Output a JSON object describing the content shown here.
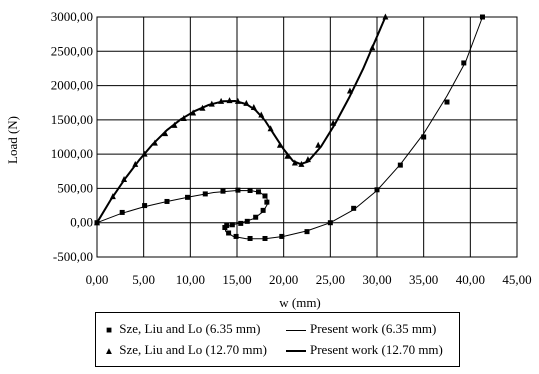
{
  "chart_data": {
    "type": "scatter",
    "xlabel": "w (mm)",
    "ylabel": "Load (N)",
    "xlim": [
      0,
      45
    ],
    "ylim": [
      -500,
      3000
    ],
    "xticks": [
      "0,00",
      "5,00",
      "10,00",
      "15,00",
      "20,00",
      "25,00",
      "30,00",
      "35,00",
      "40,00",
      "45,00"
    ],
    "yticks": [
      "-500,00",
      "0,00",
      "500,00",
      "1000,00",
      "1500,00",
      "2000,00",
      "2500,00",
      "3000,00"
    ],
    "grid": true,
    "legend_position": "bottom",
    "series": [
      {
        "name": "Sze, Liu and Lo (6.35 mm)",
        "kind": "markers",
        "marker": "square",
        "points": [
          [
            0,
            0
          ],
          [
            2.7,
            150
          ],
          [
            5.1,
            250
          ],
          [
            7.5,
            310
          ],
          [
            9.7,
            370
          ],
          [
            11.6,
            420
          ],
          [
            13.5,
            460
          ],
          [
            15.1,
            475
          ],
          [
            16.4,
            470
          ],
          [
            17.3,
            450
          ],
          [
            18,
            390
          ],
          [
            18.2,
            300
          ],
          [
            17.8,
            180
          ],
          [
            17,
            80
          ],
          [
            16.1,
            20
          ],
          [
            15.4,
            -10
          ],
          [
            14.5,
            -30
          ],
          [
            13.9,
            -40
          ],
          [
            13.7,
            -70
          ],
          [
            14.1,
            -150
          ],
          [
            14.9,
            -200
          ],
          [
            16.4,
            -230
          ],
          [
            18,
            -230
          ],
          [
            19.8,
            -200
          ],
          [
            22.5,
            -130
          ],
          [
            25,
            0
          ],
          [
            27.5,
            210
          ],
          [
            30,
            480
          ],
          [
            32.5,
            840
          ],
          [
            35,
            1250
          ],
          [
            37.5,
            1760
          ],
          [
            39.3,
            2330
          ],
          [
            41.3,
            3000
          ]
        ]
      },
      {
        "name": "Present work (6.35 mm)",
        "kind": "line",
        "width": 1,
        "points": [
          [
            0,
            0
          ],
          [
            2.5,
            130
          ],
          [
            5,
            230
          ],
          [
            7.5,
            310
          ],
          [
            10,
            380
          ],
          [
            12.5,
            440
          ],
          [
            15,
            470
          ],
          [
            16.5,
            468
          ],
          [
            17.5,
            440
          ],
          [
            18.2,
            360
          ],
          [
            18.3,
            280
          ],
          [
            17.8,
            160
          ],
          [
            16.8,
            60
          ],
          [
            15.5,
            0
          ],
          [
            14.5,
            -30
          ],
          [
            13.7,
            -70
          ],
          [
            13.8,
            -130
          ],
          [
            14.6,
            -200
          ],
          [
            16,
            -235
          ],
          [
            18,
            -235
          ],
          [
            20,
            -200
          ],
          [
            22.5,
            -120
          ],
          [
            25,
            0
          ],
          [
            27.5,
            190
          ],
          [
            30,
            470
          ],
          [
            32.5,
            850
          ],
          [
            35,
            1300
          ],
          [
            37.5,
            1850
          ],
          [
            39.5,
            2350
          ],
          [
            41.3,
            3000
          ]
        ]
      },
      {
        "name": "Sze, Liu and Lo (12.70 mm)",
        "kind": "markers",
        "marker": "triangle",
        "points": [
          [
            0,
            0
          ],
          [
            1.7,
            380
          ],
          [
            2.9,
            630
          ],
          [
            4.1,
            850
          ],
          [
            5.1,
            1000
          ],
          [
            6.2,
            1160
          ],
          [
            7.3,
            1300
          ],
          [
            8.3,
            1420
          ],
          [
            9.3,
            1520
          ],
          [
            10.3,
            1600
          ],
          [
            11.3,
            1670
          ],
          [
            12.3,
            1730
          ],
          [
            13.3,
            1770
          ],
          [
            14.2,
            1780
          ],
          [
            15.1,
            1770
          ],
          [
            16,
            1740
          ],
          [
            16.8,
            1680
          ],
          [
            17.6,
            1570
          ],
          [
            18.6,
            1370
          ],
          [
            19.6,
            1130
          ],
          [
            20.4,
            970
          ],
          [
            21.2,
            870
          ],
          [
            21.9,
            850
          ],
          [
            22.6,
            920
          ],
          [
            23.7,
            1130
          ],
          [
            25.3,
            1450
          ],
          [
            27.1,
            1920
          ],
          [
            29.5,
            2550
          ],
          [
            30.9,
            3000
          ]
        ]
      },
      {
        "name": "Present work (12.70 mm)",
        "kind": "line",
        "width": 2,
        "points": [
          [
            0,
            0
          ],
          [
            1.5,
            340
          ],
          [
            3,
            640
          ],
          [
            4.5,
            910
          ],
          [
            6,
            1150
          ],
          [
            7.5,
            1350
          ],
          [
            9,
            1510
          ],
          [
            10.5,
            1630
          ],
          [
            12,
            1720
          ],
          [
            13.5,
            1770
          ],
          [
            14.8,
            1775
          ],
          [
            16,
            1730
          ],
          [
            17,
            1640
          ],
          [
            18,
            1490
          ],
          [
            19,
            1280
          ],
          [
            20,
            1070
          ],
          [
            21,
            900
          ],
          [
            21.8,
            855
          ],
          [
            22.6,
            890
          ],
          [
            24,
            1110
          ],
          [
            25.5,
            1440
          ],
          [
            27,
            1820
          ],
          [
            28.5,
            2240
          ],
          [
            29.8,
            2650
          ],
          [
            30.9,
            3000
          ]
        ]
      }
    ]
  },
  "legend": [
    {
      "label": "Sze, Liu and Lo (6.35 mm)",
      "symbol": "■"
    },
    {
      "label": "Present work (6.35 mm)"
    },
    {
      "label": "Sze, Liu and Lo (12.70 mm)",
      "symbol": "▲"
    },
    {
      "label": "Present work (12.70 mm)"
    }
  ]
}
